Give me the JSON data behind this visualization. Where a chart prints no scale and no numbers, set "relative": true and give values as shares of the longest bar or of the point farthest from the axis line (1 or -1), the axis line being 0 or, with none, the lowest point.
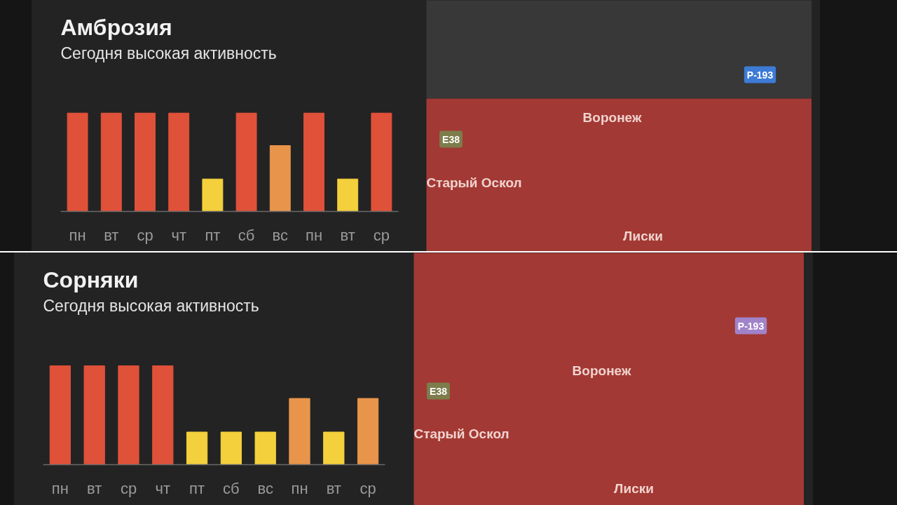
{
  "chart_data": [
    {
      "type": "bar",
      "title": "Амброзия",
      "subtitle": "Сегодня высокая активность",
      "categories": [
        "пн",
        "вт",
        "ср",
        "чт",
        "пт",
        "сб",
        "вс",
        "пн",
        "вт",
        "ср"
      ],
      "values": [
        1,
        1,
        1,
        1,
        0.33,
        1,
        0.67,
        1,
        0.33,
        1
      ],
      "colors": [
        "#e0513a",
        "#e0513a",
        "#e0513a",
        "#e0513a",
        "#f4d03c",
        "#e0513a",
        "#e8954b",
        "#e0513a",
        "#f4d03c",
        "#e0513a"
      ],
      "relative": true
    },
    {
      "type": "other",
      "annotations": [
        "Р-193",
        "Воронеж",
        "E38",
        "Старый Оскол",
        "Лиски"
      ]
    },
    {
      "type": "bar",
      "title": "Сорняки",
      "subtitle": "Сегодня высокая активность",
      "categories": [
        "пн",
        "вт",
        "ср",
        "чт",
        "пт",
        "сб",
        "вс",
        "пн",
        "вт",
        "ср"
      ],
      "values": [
        1,
        1,
        1,
        1,
        0.33,
        0.33,
        0.33,
        0.67,
        0.33,
        0.67
      ],
      "colors": [
        "#e0513a",
        "#e0513a",
        "#e0513a",
        "#e0513a",
        "#f4d03c",
        "#f4d03c",
        "#f4d03c",
        "#e8954b",
        "#f4d03c",
        "#e8954b"
      ],
      "relative": true
    },
    {
      "type": "other",
      "annotations": [
        "Р-193",
        "Воронеж",
        "E38",
        "Старый Оскол",
        "Лиски"
      ]
    }
  ]
}
